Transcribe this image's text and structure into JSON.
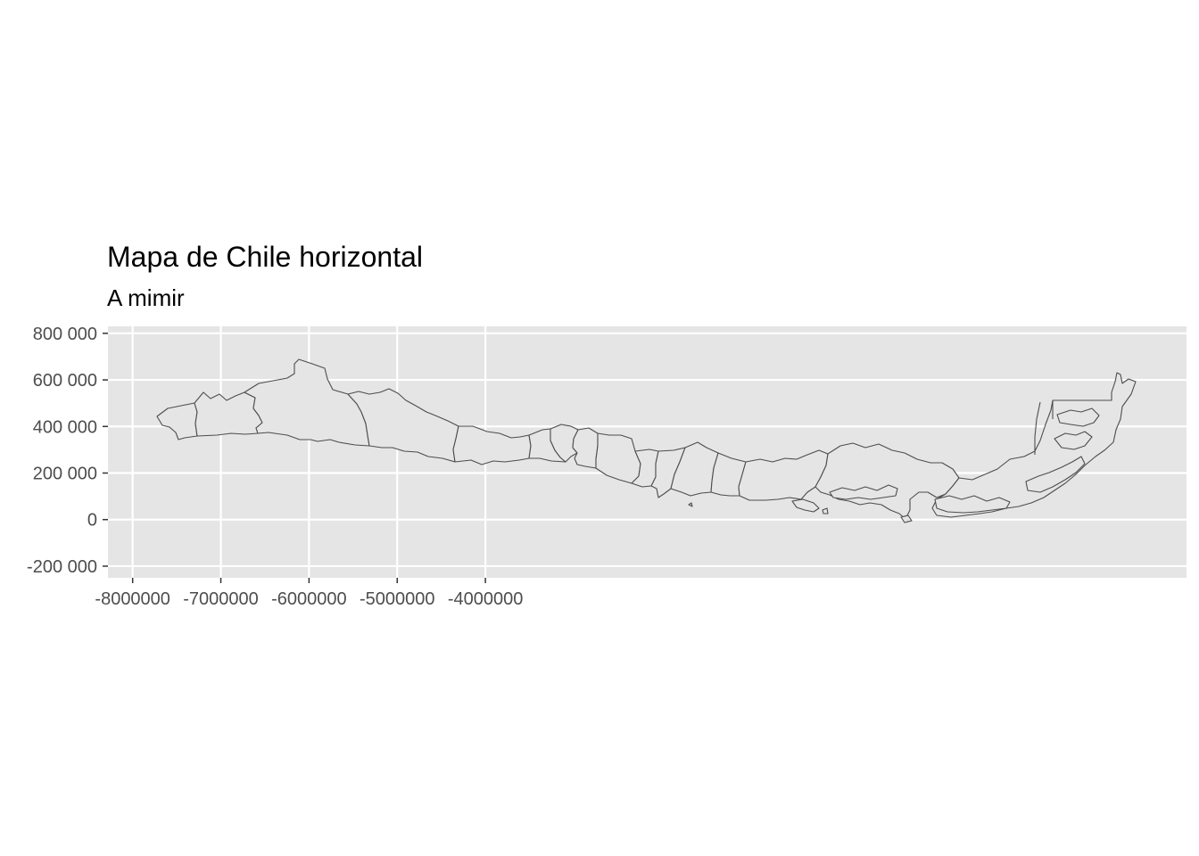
{
  "chart_data": {
    "type": "map",
    "title": "Mapa de Chile horizontal",
    "subtitle": "A mimir",
    "xlabel": "",
    "ylabel": "",
    "xlim": [
      -8280000,
      3950000
    ],
    "ylim": [
      -250000,
      830000
    ],
    "x_ticks": [
      -8000000,
      -7000000,
      -6000000,
      -5000000,
      -4000000
    ],
    "x_tick_labels": [
      "-8000000",
      "-7000000",
      "-6000000",
      "-5000000",
      "-4000000"
    ],
    "y_ticks": [
      800000,
      600000,
      400000,
      200000,
      0,
      -200000
    ],
    "y_tick_labels": [
      "800 000",
      "600 000",
      "400 000",
      "200 000",
      "0",
      "-200 000"
    ],
    "grid": true,
    "panel_color": "#e5e5e5",
    "grid_color": "#ffffff",
    "region_fill": "#e5e5e5",
    "region_stroke": "#4d4d4d"
  }
}
